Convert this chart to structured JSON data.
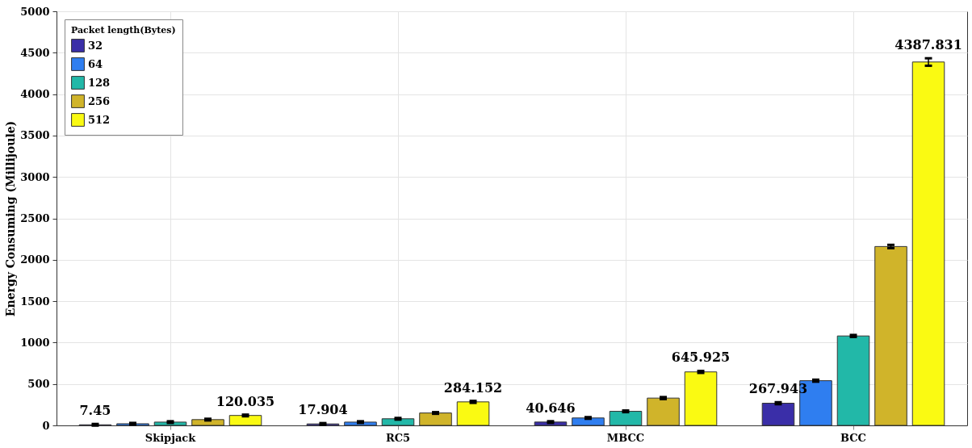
{
  "chart_data": {
    "type": "bar",
    "ylabel": "Energy Consuming (Millijoule)",
    "legend_title": "Packet length(Bytes)",
    "categories": [
      "Skipjack",
      "RC5",
      "MBCC",
      "BCC"
    ],
    "series": [
      {
        "name": "32",
        "color": "#3a2ea8",
        "values": [
          7.45,
          17.904,
          40.646,
          267.943
        ],
        "errors": [
          10,
          10,
          10,
          12
        ],
        "value_labels": [
          "7.45",
          "17.904",
          "40.646",
          "267.943"
        ]
      },
      {
        "name": "64",
        "color": "#2f7ef0",
        "values": [
          20,
          40,
          90,
          540
        ],
        "errors": [
          10,
          10,
          10,
          12
        ],
        "value_labels": [
          null,
          null,
          null,
          null
        ]
      },
      {
        "name": "128",
        "color": "#22b8a8",
        "values": [
          40,
          80,
          170,
          1080
        ],
        "errors": [
          10,
          10,
          10,
          12
        ],
        "value_labels": [
          null,
          null,
          null,
          null
        ]
      },
      {
        "name": "256",
        "color": "#d0b42a",
        "values": [
          70,
          150,
          330,
          2160
        ],
        "errors": [
          10,
          10,
          12,
          20
        ],
        "value_labels": [
          null,
          null,
          null,
          null
        ]
      },
      {
        "name": "512",
        "color": "#fafa12",
        "values": [
          120.035,
          284.152,
          645.925,
          4387.831
        ],
        "errors": [
          10,
          12,
          12,
          45
        ],
        "value_labels": [
          "120.035",
          "284.152",
          "645.925",
          "4387.831"
        ]
      }
    ],
    "ylim": [
      0,
      5000
    ],
    "yticks": [
      0,
      500,
      1000,
      1500,
      2000,
      2500,
      3000,
      3500,
      4000,
      4500,
      5000
    ],
    "grid": true,
    "legend": "top left"
  }
}
